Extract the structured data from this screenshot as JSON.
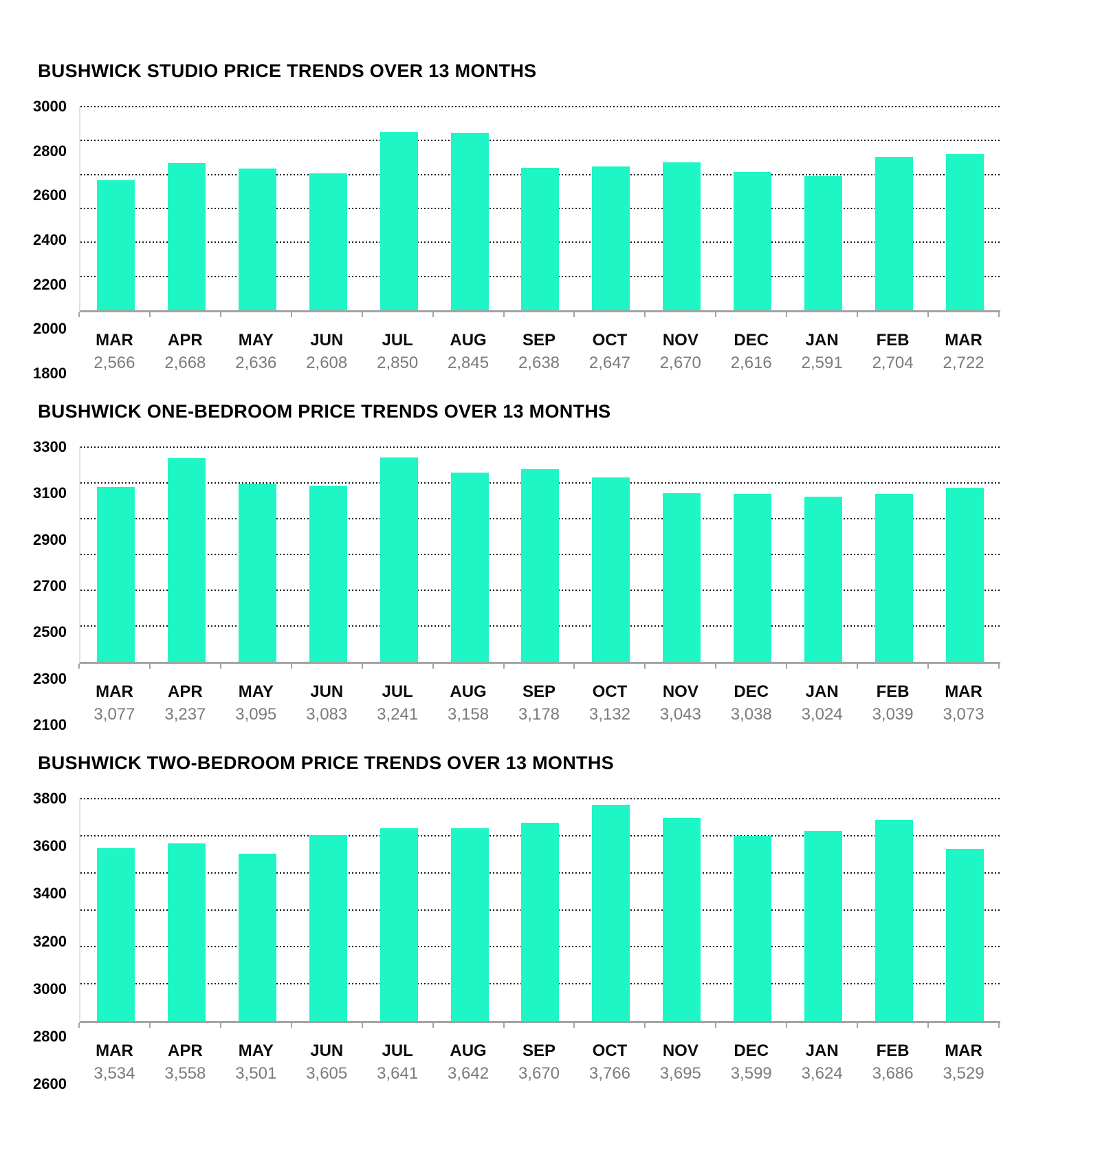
{
  "colors": {
    "bar": "#1ef6c6",
    "gridline": "#161616",
    "axis_bottom": "#a3a3a3",
    "axis_left": "#e3e3e3",
    "title_text": "#000000",
    "month_text": "#0d0d0d",
    "value_text": "#7b7b7b"
  },
  "chart_data": [
    {
      "type": "bar",
      "title": "BUSHWICK STUDIO PRICE TRENDS OVER 13 MONTHS",
      "categories": [
        "MAR",
        "APR",
        "MAY",
        "JUN",
        "JUL",
        "AUG",
        "SEP",
        "OCT",
        "NOV",
        "DEC",
        "JAN",
        "FEB",
        "MAR"
      ],
      "values": [
        2566,
        2668,
        2636,
        2608,
        2850,
        2845,
        2638,
        2647,
        2670,
        2616,
        2591,
        2704,
        2722
      ],
      "value_labels": [
        "2,566",
        "2,668",
        "2,636",
        "2,608",
        "2,850",
        "2,845",
        "2,638",
        "2,647",
        "2,670",
        "2,616",
        "2,591",
        "2,704",
        "2,722"
      ],
      "xlabel": "",
      "ylabel": "",
      "ylim": [
        1800,
        3000
      ],
      "yticks": [
        3000,
        2800,
        2600,
        2400,
        2200,
        2000,
        1800
      ],
      "grid": "dotted-horizontal",
      "legend": "none"
    },
    {
      "type": "bar",
      "title": "BUSHWICK ONE-BEDROOM PRICE TRENDS OVER 13 MONTHS",
      "categories": [
        "MAR",
        "APR",
        "MAY",
        "JUN",
        "JUL",
        "AUG",
        "SEP",
        "OCT",
        "NOV",
        "DEC",
        "JAN",
        "FEB",
        "MAR"
      ],
      "values": [
        3077,
        3237,
        3095,
        3083,
        3241,
        3158,
        3178,
        3132,
        3043,
        3038,
        3024,
        3039,
        3073
      ],
      "value_labels": [
        "3,077",
        "3,237",
        "3,095",
        "3,083",
        "3,241",
        "3,158",
        "3,178",
        "3,132",
        "3,043",
        "3,038",
        "3,024",
        "3,039",
        "3,073"
      ],
      "xlabel": "",
      "ylabel": "",
      "ylim": [
        2100,
        3300
      ],
      "yticks": [
        3300,
        3100,
        2900,
        2700,
        2500,
        2300,
        2100
      ],
      "grid": "dotted-horizontal",
      "legend": "none"
    },
    {
      "type": "bar",
      "title": "BUSHWICK TWO-BEDROOM PRICE TRENDS OVER 13 MONTHS",
      "categories": [
        "MAR",
        "APR",
        "MAY",
        "JUN",
        "JUL",
        "AUG",
        "SEP",
        "OCT",
        "NOV",
        "DEC",
        "JAN",
        "FEB",
        "MAR"
      ],
      "values": [
        3534,
        3558,
        3501,
        3605,
        3641,
        3642,
        3670,
        3766,
        3695,
        3599,
        3624,
        3686,
        3529
      ],
      "value_labels": [
        "3,534",
        "3,558",
        "3,501",
        "3,605",
        "3,641",
        "3,642",
        "3,670",
        "3,766",
        "3,695",
        "3,599",
        "3,624",
        "3,686",
        "3,529"
      ],
      "xlabel": "",
      "ylabel": "",
      "ylim": [
        2600,
        3800
      ],
      "yticks": [
        3800,
        3600,
        3400,
        3200,
        3000,
        2800,
        2600
      ],
      "grid": "dotted-horizontal",
      "legend": "none"
    }
  ]
}
